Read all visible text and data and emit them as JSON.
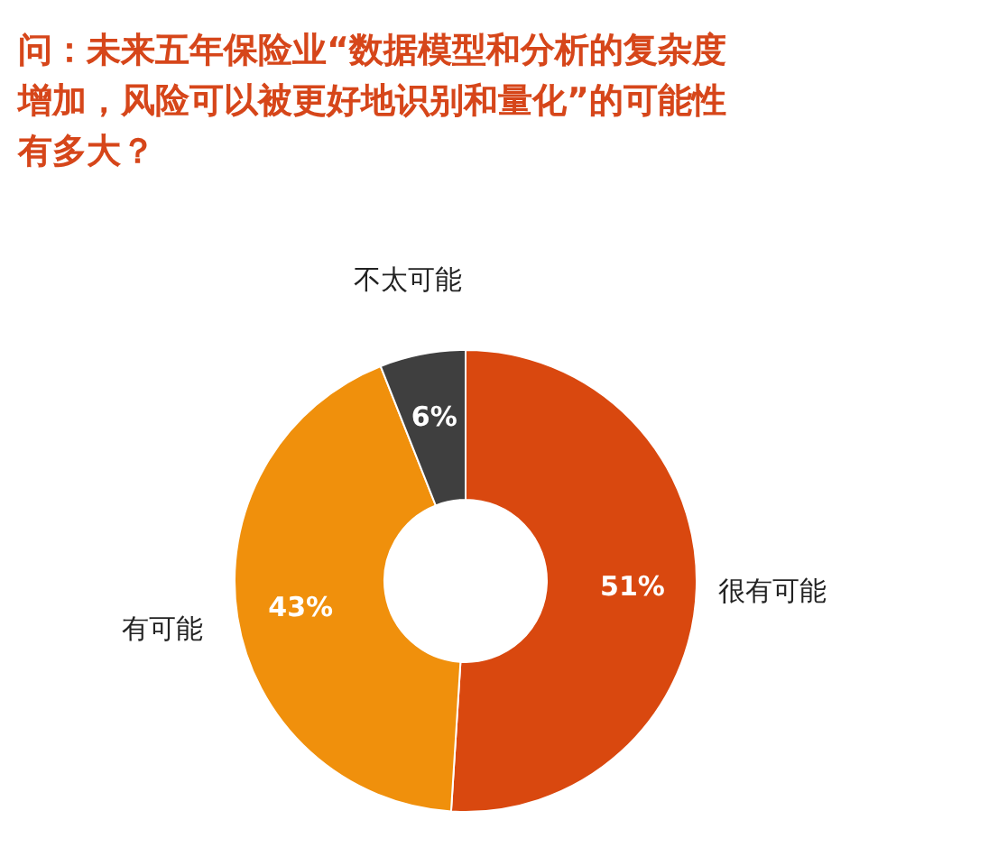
{
  "chart_data": {
    "type": "donut",
    "title": "问：未来五年保险业“数据模型和分析的复杂度增加，风险可以被更好地识别和量化”的可能性有多大？",
    "categories": [
      "很有可能",
      "有可能",
      "不太可能"
    ],
    "values": [
      51,
      43,
      6
    ],
    "colors": [
      "#d9480f",
      "#f0900c",
      "#3f3f3f"
    ],
    "value_labels": [
      "51%",
      "43%",
      "6%"
    ],
    "legend": false
  }
}
